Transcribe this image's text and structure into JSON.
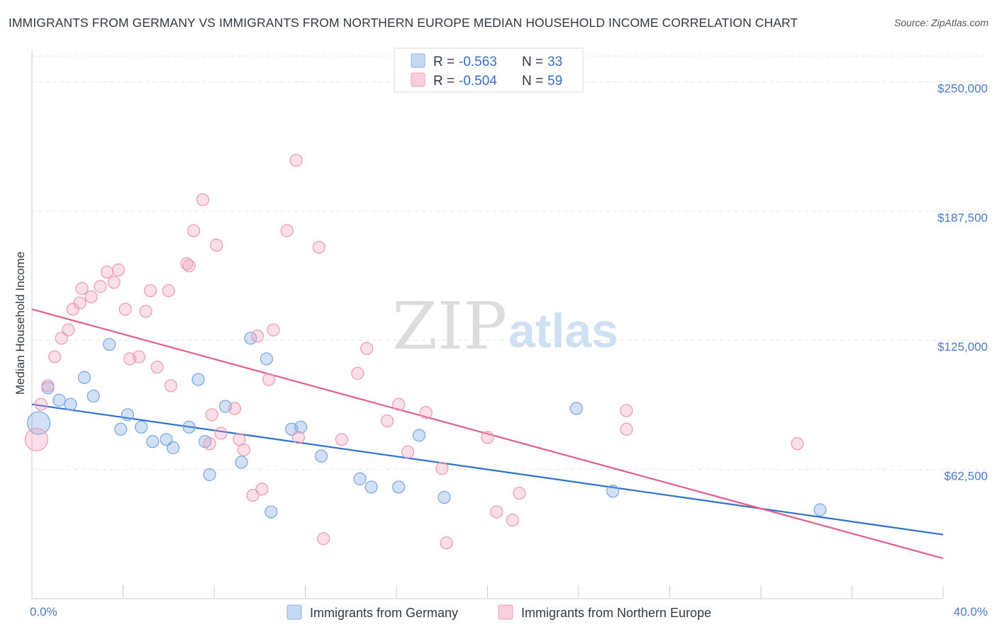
{
  "title": "IMMIGRANTS FROM GERMANY VS IMMIGRANTS FROM NORTHERN EUROPE MEDIAN HOUSEHOLD INCOME CORRELATION CHART",
  "source": "Source: ZipAtlas.com",
  "watermark": {
    "zip": "ZIP",
    "atlas": "atlas"
  },
  "colors": {
    "blue": "#6f9fe0",
    "blue_line": "#2f6fcf",
    "pink": "#ef9bb6",
    "pink_line": "#e0608e",
    "tick_text": "#4a7cc9"
  },
  "chart_data": {
    "type": "scatter",
    "ylabel": "Median Household Income",
    "xlim": [
      0,
      40
    ],
    "ylim": [
      0,
      262500
    ],
    "x_tick_labels": [
      {
        "value": 0,
        "label": "0.0%"
      },
      {
        "value": 40,
        "label": "40.0%"
      }
    ],
    "y_ticks": [
      {
        "value": 62500,
        "label": "$62,500"
      },
      {
        "value": 125000,
        "label": "$125,000"
      },
      {
        "value": 187500,
        "label": "$187,500"
      },
      {
        "value": 250000,
        "label": "$250,000"
      }
    ],
    "legend": [
      {
        "r_label": "R = ",
        "r_value": "-0.563",
        "n_label": "N = ",
        "n_value": "33"
      },
      {
        "r_label": "R = ",
        "r_value": "-0.504",
        "n_label": "N = ",
        "n_value": "59"
      }
    ],
    "series": [
      {
        "name": "Immigrants from Germany",
        "color": "#6f9fe0",
        "trend": {
          "x": [
            0,
            40
          ],
          "y": [
            94000,
            31000
          ]
        },
        "points": [
          [
            0.3,
            85000,
            "large"
          ],
          [
            0.7,
            102000
          ],
          [
            1.2,
            96000
          ],
          [
            1.7,
            94000
          ],
          [
            2.3,
            107000
          ],
          [
            2.7,
            98000
          ],
          [
            3.4,
            123000
          ],
          [
            3.9,
            82000
          ],
          [
            4.2,
            89000
          ],
          [
            4.8,
            83000
          ],
          [
            5.3,
            76000
          ],
          [
            5.9,
            77000
          ],
          [
            6.2,
            73000
          ],
          [
            6.9,
            83000
          ],
          [
            7.3,
            106000
          ],
          [
            7.8,
            60000
          ],
          [
            7.6,
            76000
          ],
          [
            8.5,
            93000
          ],
          [
            9.2,
            66000
          ],
          [
            9.6,
            126000
          ],
          [
            10.3,
            116000
          ],
          [
            10.5,
            42000
          ],
          [
            11.4,
            82000
          ],
          [
            11.8,
            83000
          ],
          [
            12.7,
            69000
          ],
          [
            14.4,
            58000
          ],
          [
            14.9,
            54000
          ],
          [
            16.1,
            54000
          ],
          [
            17.0,
            79000
          ],
          [
            18.1,
            49000
          ],
          [
            23.9,
            92000
          ],
          [
            25.5,
            52000
          ],
          [
            34.6,
            43000
          ]
        ]
      },
      {
        "name": "Immigrants from Northern Europe",
        "color": "#ef9bb6",
        "trend": {
          "x": [
            0,
            40
          ],
          "y": [
            140000,
            19500
          ]
        },
        "points": [
          [
            0.2,
            77000,
            "large"
          ],
          [
            0.4,
            94000
          ],
          [
            0.7,
            103000
          ],
          [
            1.0,
            117000
          ],
          [
            1.3,
            126000
          ],
          [
            1.6,
            130000
          ],
          [
            1.8,
            140000
          ],
          [
            2.1,
            143000
          ],
          [
            2.2,
            150000
          ],
          [
            2.6,
            146000
          ],
          [
            3.0,
            151000
          ],
          [
            3.3,
            158000
          ],
          [
            3.6,
            153000
          ],
          [
            3.8,
            159000
          ],
          [
            4.1,
            140000
          ],
          [
            4.3,
            116000
          ],
          [
            4.7,
            117000
          ],
          [
            5.0,
            139000
          ],
          [
            5.2,
            149000
          ],
          [
            5.5,
            112000
          ],
          [
            6.0,
            149000
          ],
          [
            6.1,
            103000
          ],
          [
            6.8,
            162000
          ],
          [
            6.9,
            161000
          ],
          [
            7.1,
            178000
          ],
          [
            7.5,
            193000
          ],
          [
            7.8,
            75000
          ],
          [
            7.9,
            89000
          ],
          [
            8.1,
            171000
          ],
          [
            8.3,
            80000
          ],
          [
            8.9,
            92000
          ],
          [
            9.1,
            77000
          ],
          [
            9.3,
            72000
          ],
          [
            9.7,
            50000
          ],
          [
            9.9,
            127000
          ],
          [
            10.1,
            53000
          ],
          [
            10.4,
            106000
          ],
          [
            10.6,
            130000
          ],
          [
            11.2,
            178000
          ],
          [
            11.6,
            212000
          ],
          [
            11.7,
            78000
          ],
          [
            12.6,
            170000
          ],
          [
            12.8,
            29000
          ],
          [
            13.6,
            77000
          ],
          [
            14.3,
            109000
          ],
          [
            14.7,
            121000
          ],
          [
            15.6,
            86000
          ],
          [
            16.1,
            94000
          ],
          [
            16.5,
            71000
          ],
          [
            17.3,
            90000
          ],
          [
            18.0,
            63000
          ],
          [
            18.2,
            27000
          ],
          [
            20.0,
            78000
          ],
          [
            20.4,
            42000
          ],
          [
            21.1,
            38000
          ],
          [
            21.4,
            51000
          ],
          [
            26.1,
            91000
          ],
          [
            26.1,
            82000
          ],
          [
            33.6,
            75000
          ]
        ]
      }
    ]
  }
}
